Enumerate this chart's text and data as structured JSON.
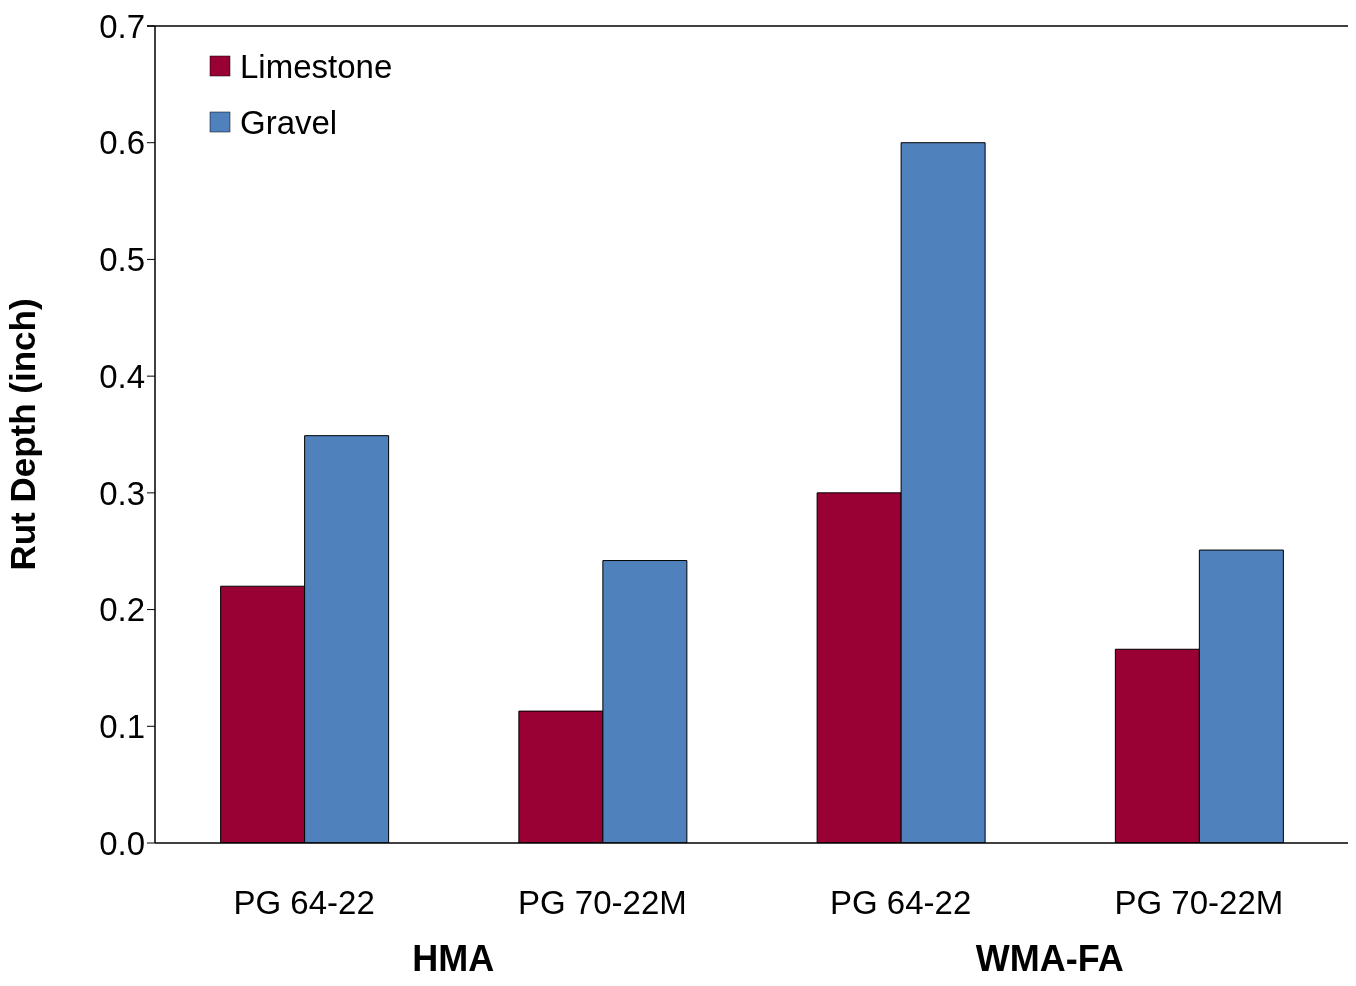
{
  "chart_data": {
    "type": "bar",
    "ylabel": "Rut Depth (inch)",
    "categories": [
      "PG 64-22",
      "PG 70-22M",
      "PG 64-22",
      "PG 70-22M"
    ],
    "series": [
      {
        "name": "Limestone",
        "color": "#990033",
        "values": [
          0.22,
          0.113,
          0.3,
          0.166
        ]
      },
      {
        "name": "Gravel",
        "color": "#4f81bd",
        "values": [
          0.349,
          0.242,
          0.6,
          0.251
        ]
      }
    ],
    "ylim": [
      0,
      0.7
    ],
    "yticks": [
      {
        "value": 0,
        "label": "0.0"
      },
      {
        "value": 0.1,
        "label": "0.1"
      },
      {
        "value": 0.2,
        "label": "0.2"
      },
      {
        "value": 0.3,
        "label": "0.3"
      },
      {
        "value": 0.4,
        "label": "0.4"
      },
      {
        "value": 0.5,
        "label": "0.5"
      },
      {
        "value": 0.6,
        "label": "0.6"
      },
      {
        "value": 0.7,
        "label": "0.7"
      }
    ],
    "grid": false,
    "legend": "top left",
    "annotations": [
      "HMA",
      "WMA-FA"
    ]
  }
}
